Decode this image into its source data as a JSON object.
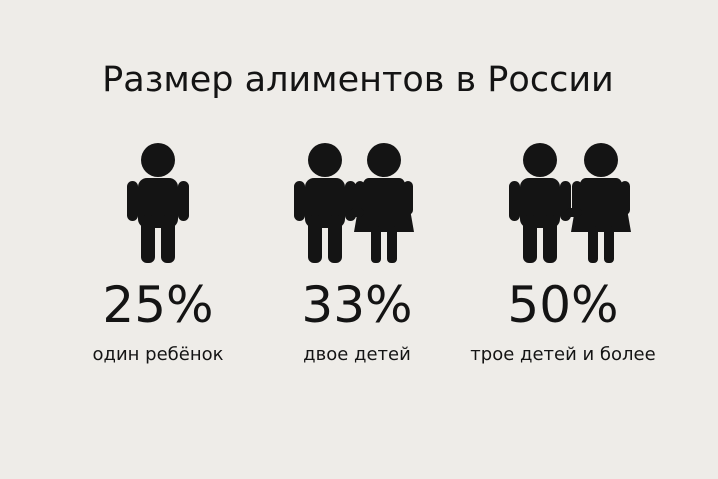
{
  "header": {
    "title": "Размер алиментов в России"
  },
  "items": [
    {
      "value": "25%",
      "label": "один ребёнок"
    },
    {
      "value": "33%",
      "label": "двое детей"
    },
    {
      "value": "50%",
      "label": "трое детей и более"
    }
  ]
}
